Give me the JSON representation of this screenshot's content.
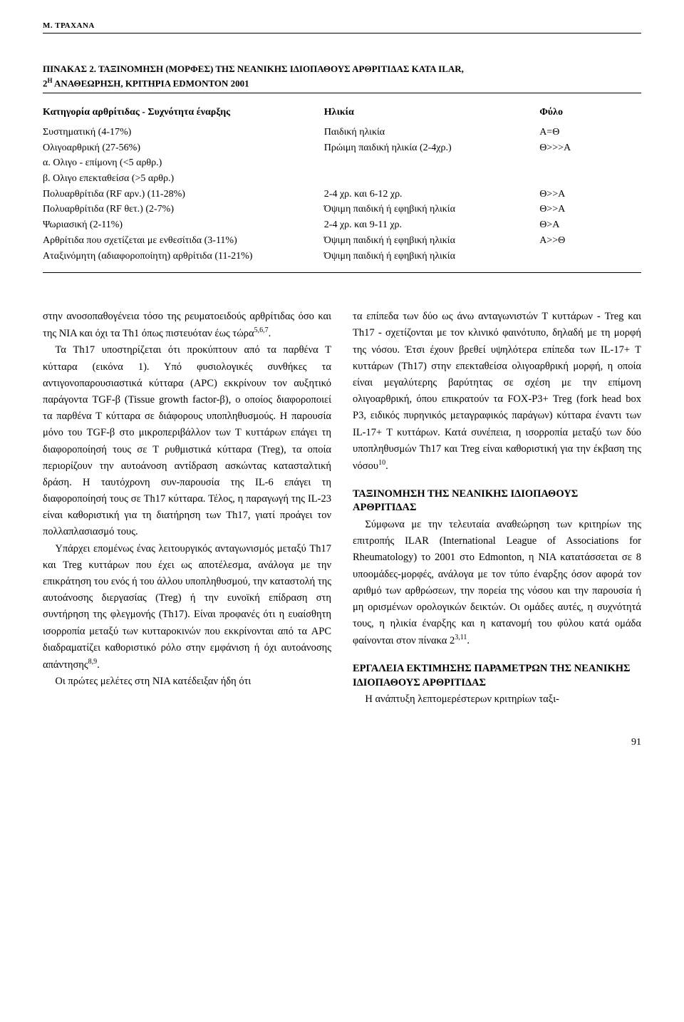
{
  "running_header": "Μ. ΤΡΑΧΑΝΑ",
  "table": {
    "caption_label": "ΠΙΝΑΚΑΣ 2.",
    "caption_text": "ΤΑΞΙΝΟΜΗΣΗ (ΜΟΡΦΕΣ) ΤΗΣ ΝΕΑΝΙΚΗΣ ΙΔΙΟΠΑΘΟΥΣ ΑΡΘΡΙΤΙΔΑΣ ΚΑΤΑ ILAR,",
    "caption_line2_pre": "2",
    "caption_line2_sup": "Η",
    "caption_line2_post": " ΑΝΑΘΕΩΡΗΣΗ, ΚΡΙΤΗΡΙΑ EDMONTON 2001",
    "headers": {
      "category": "Κατηγορία αρθρίτιδας - Συχνότητα έναρξης",
      "age": "Ηλικία",
      "sex": "Φύλο"
    },
    "rows": [
      {
        "cat": "Συστηματική (4-17%)",
        "age": "Παιδική ηλικία",
        "sex": "Α=Θ",
        "indent": 0
      },
      {
        "cat": "Ολιγοαρθρική (27-56%)",
        "age": "Πρώιμη παιδική ηλικία (2-4χρ.)",
        "sex": "Θ>>>Α",
        "indent": 0
      },
      {
        "cat": "α. Ολιγο - επίμονη (<5 αρθρ.)",
        "age": "",
        "sex": "",
        "indent": 1
      },
      {
        "cat": "β. Ολιγο  επεκταθείσα (>5 αρθρ.)",
        "age": "",
        "sex": "",
        "indent": 1
      },
      {
        "cat": "Πολυαρθρίτιδα (RF αρν.) (11-28%)",
        "age": "2-4 χρ. και 6-12 χρ.",
        "sex": "Θ>>Α",
        "indent": 0
      },
      {
        "cat": "Πολυαρθρίτιδα (RF θετ.) (2-7%)",
        "age": "Όψιμη παιδική ή εφηβική ηλικία",
        "sex": "Θ>>Α",
        "indent": 0
      },
      {
        "cat": "Ψωριασική (2-11%)",
        "age": "2-4 χρ. και 9-11 χρ.",
        "sex": "Θ>Α",
        "indent": 0
      },
      {
        "cat": "Αρθρίτιδα που σχετίζεται με ενθεσίτιδα (3-11%)",
        "age": "Όψιμη παιδική ή εφηβική ηλικία",
        "sex": "Α>>Θ",
        "indent": 0
      },
      {
        "cat": "Αταξινόμητη (αδιαφοροποίητη) αρθρίτιδα (11-21%)",
        "age": "Όψιμη παιδική ή εφηβική ηλικία",
        "sex": "",
        "indent": 0
      }
    ]
  },
  "body": {
    "left": {
      "p1": "στην ανοσοπαθογένεια τόσο της ρευματοειδούς αρθρίτιδας όσο και της ΝΙΑ και όχι τα Th1 όπως πιστευόταν έως τώρα",
      "p1_sup": "5,6,7",
      "p1_end": ".",
      "p2": "Τα Th17 υποστηρίζεται ότι προκύπτουν από τα παρθένα Τ κύτταρα (εικόνα 1). Υπό φυσιολογικές συνθήκες τα αντιγονοπαρουσιαστικά κύτταρα (APC) εκκρίνουν τον αυξητικό παράγοντα TGF-β (Tissue growth factor-β), ο οποίος διαφοροποιεί τα παρθένα Τ κύτταρα σε διάφορους υποπληθυσμούς. Η παρουσία μόνο του TGF-β στο μικροπεριβάλλον των Τ κυττάρων επάγει τη διαφοροποίησή τους σε Τ ρυθμιστικά κύτταρα (Treg), τα οποία περιορίζουν την αυτοάνοση αντίδραση ασκώντας κατασταλτική δράση. Η ταυτόχρονη συν-παρουσία της IL-6 επάγει τη διαφοροποίησή τους σε Th17 κύτταρα. Τέλος, η παραγωγή της IL-23 είναι καθοριστική για τη διατήρηση των Th17, γιατί προάγει τον πολλαπλασιασμό τους.",
      "p3a": "Υπάρχει επομένως ένας λειτουργικός ανταγωνισμός μεταξύ Th17 και Treg κυττάρων που έχει ως αποτέλεσμα, ανάλογα με την επικράτηση του ενός ή του άλλου υποπληθυσμού, την καταστολή της αυτοάνοσης διεργασίας (Treg) ή την ευνοϊκή επίδραση στη συντήρηση της φλεγμονής (Th17). Είναι προφανές ότι η ευαίσθητη ισορροπία μεταξύ των κυτταροκινών που εκκρίνονται από τα APC διαδραματίζει καθοριστικό ρόλο στην εμφάνιση ή όχι αυτοάνοσης απάντησης",
      "p3_sup": "8,9",
      "p3b": ".",
      "p4": "Οι πρώτες μελέτες στη ΝΙΑ κατέδειξαν ήδη ότι"
    },
    "right": {
      "p1a": "τα επίπεδα των δύο ως άνω ανταγωνιστών Τ κυττάρων - Treg και Th17 - σχετίζονται με τον κλινικό φαινότυπο, δηλαδή με τη μορφή της νόσου. Έτσι έχουν βρεθεί υψηλότερα επίπεδα των IL-17+ T κυττάρων (Th17) στην επεκταθείσα ολιγοαρθρική μορφή, η οποία είναι μεγαλύτερης βαρύτητας σε σχέση με την επίμονη ολιγοαρθρική, όπου επικρατούν τα FOX-P3+ Treg (fork head box P3, ειδικός πυρηνικός μεταγραφικός παράγων) κύτταρα έναντι των IL-17+ T κυττάρων. Κατά συνέπεια, η ισορροπία μεταξύ των δύο υποπληθυσμών Th17 και Treg είναι καθοριστική για την έκβαση της νόσου",
      "p1_sup": "10",
      "p1b": ".",
      "h1": "ΤΑΞΙΝΟΜΗΣΗ ΤΗΣ ΝΕΑΝΙΚΗΣ ΙΔΙΟΠΑΘΟΥΣ ΑΡΘΡΙΤΙΔΑΣ",
      "p2a": "Σύμφωνα με την τελευταία αναθεώρηση των κριτηρίων της επιτροπής ILAR (International League of Associations for Rheumatology) το 2001 στο Edmonton, η ΝΙΑ κατατάσσεται σε 8 υποομάδες-μορφές, ανάλογα με τον τύπο έναρξης όσον αφορά τον αριθμό των αρθρώσεων, την πορεία της νόσου και την παρουσία ή μη ορισμένων ορολογικών δεικτών. Οι ομάδες αυτές, η συχνότητά τους, η ηλικία έναρξης και η κατανομή του φύλου κατά ομάδα φαίνονται στον πίνακα 2",
      "p2_sup": "3,11",
      "p2b": ".",
      "h2": "ΕΡΓΑΛΕΙΑ ΕΚΤΙΜΗΣΗΣ ΠΑΡΑΜΕΤΡΩΝ ΤΗΣ ΝΕΑΝΙΚΗΣ ΙΔΙΟΠΑΘΟΥΣ ΑΡΘΡΙΤΙΔΑΣ",
      "p3": "Η ανάπτυξη λεπτομερέστερων κριτηρίων ταξι-"
    }
  },
  "page_number": "91"
}
